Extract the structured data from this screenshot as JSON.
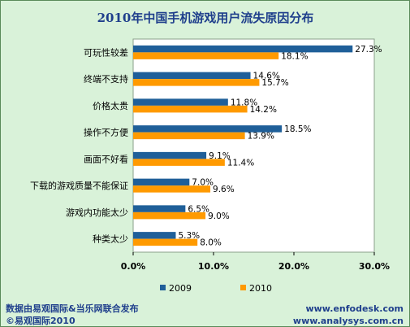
{
  "chart_data": {
    "type": "bar",
    "orientation": "horizontal",
    "title": "2010年中国手机游戏用户流失原因分布",
    "categories": [
      "可玩性较差",
      "终端不支持",
      "价格太贵",
      "操作不方便",
      "画面不好看",
      "下载的游戏质量不能保证",
      "游戏内功能太少",
      "种类太少"
    ],
    "series": [
      {
        "name": "2009",
        "color": "#1f5f99",
        "values": [
          27.3,
          14.6,
          11.8,
          18.5,
          9.1,
          7.0,
          6.5,
          5.3
        ],
        "labels": [
          "27.3%",
          "14.6%",
          "11.8%",
          "18.5%",
          "9.1%",
          "7.0%",
          "6.5%",
          "5.3%"
        ]
      },
      {
        "name": "2010",
        "color": "#ff9a00",
        "values": [
          18.1,
          15.7,
          14.2,
          13.9,
          11.4,
          9.6,
          9.0,
          8.0
        ],
        "labels": [
          "18.1%",
          "15.7%",
          "14.2%",
          "13.9%",
          "11.4%",
          "9.6%",
          "9.0%",
          "8.0%"
        ]
      }
    ],
    "xlim": [
      0,
      30
    ],
    "xticks": [
      0,
      10,
      20,
      30
    ],
    "xtick_labels": [
      "0.0%",
      "10.0%",
      "20.0%",
      "30.0%"
    ],
    "grid": false,
    "legend_position": "bottom"
  },
  "footer": {
    "source": "数据由易观国际&当乐网联合发布",
    "copyright": "©易观国际2010",
    "url1": "www.enfodesk.com",
    "url2": "www.analysys.com.cn"
  }
}
